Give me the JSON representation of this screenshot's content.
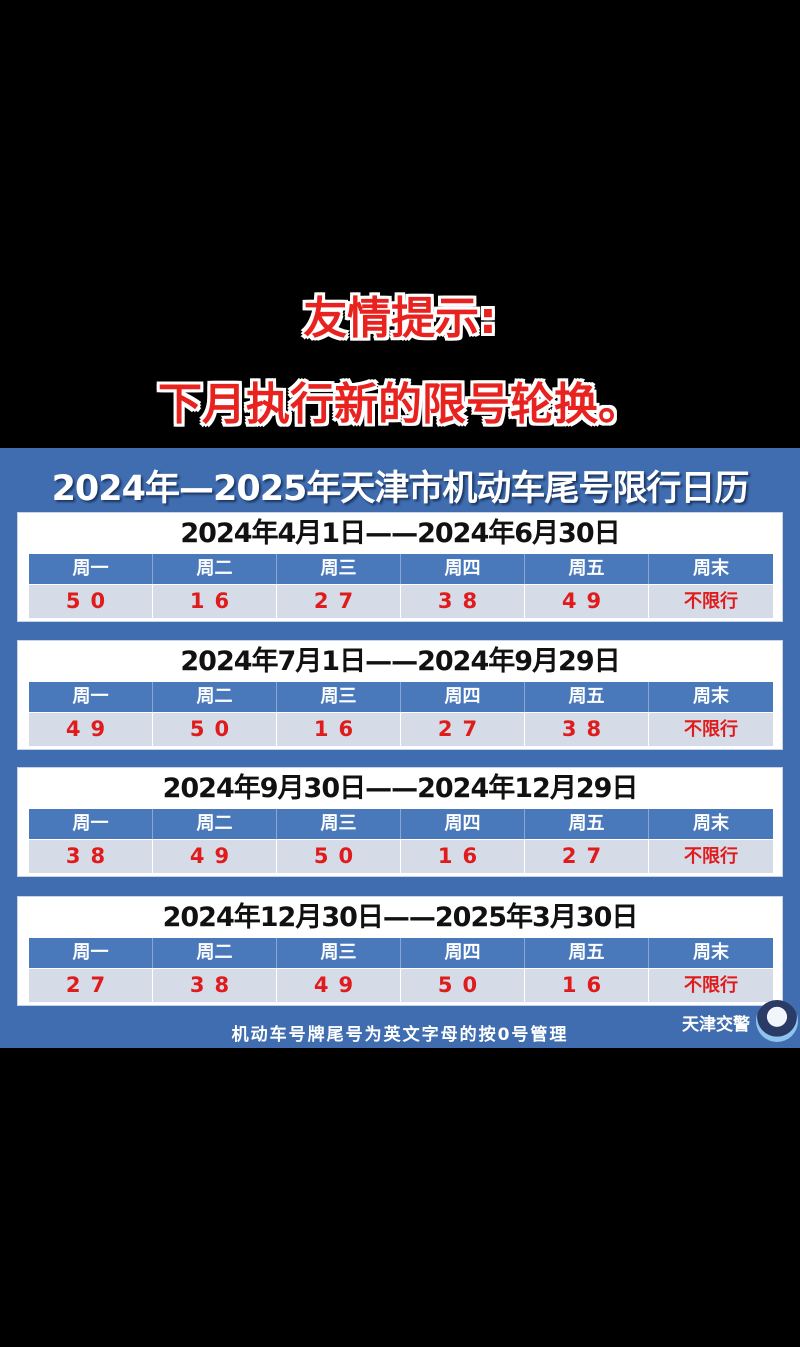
{
  "notice": {
    "line1": "友情提示:",
    "line2": "下月执行新的限号轮换。"
  },
  "panel_title": "2024年—2025年天津市机动车尾号限行日历",
  "weekday_headers": [
    "周一",
    "周二",
    "周三",
    "周四",
    "周五",
    "周末"
  ],
  "periods": [
    {
      "range": "2024年4月1日——2024年6月30日",
      "values": [
        "50",
        "16",
        "27",
        "38",
        "49",
        "不限行"
      ]
    },
    {
      "range": "2024年7月1日——2024年9月29日",
      "values": [
        "49",
        "50",
        "16",
        "27",
        "38",
        "不限行"
      ]
    },
    {
      "range": "2024年9月30日——2024年12月29日",
      "values": [
        "38",
        "49",
        "50",
        "16",
        "27",
        "不限行"
      ]
    },
    {
      "range": "2024年12月30日——2025年3月30日",
      "values": [
        "27",
        "38",
        "49",
        "50",
        "16",
        "不限行"
      ]
    }
  ],
  "footer_note": "机动车号牌尾号为英文字母的按0号管理",
  "brand": "天津交警",
  "colors": {
    "panel": "#3f6db0",
    "header_row": "#4a79bb",
    "value_row": "#d6dbe8",
    "highlight_red": "#e01b1b"
  }
}
